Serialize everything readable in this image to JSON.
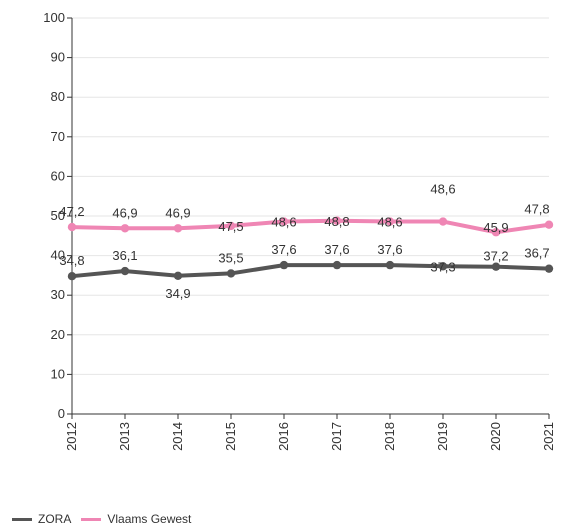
{
  "chart_data": {
    "type": "line",
    "title": "",
    "xlabel": "",
    "ylabel": "",
    "x": [
      "2012",
      "2013",
      "2014",
      "2015",
      "2016",
      "2017",
      "2018",
      "2019",
      "2020",
      "2021"
    ],
    "ylim": [
      0,
      100
    ],
    "yticks": [
      0,
      10,
      20,
      30,
      40,
      50,
      60,
      70,
      80,
      90,
      100
    ],
    "grid": true,
    "legend_position": "bottom-left",
    "series": [
      {
        "name": "ZORA",
        "color": "#555555",
        "values": [
          34.8,
          36.1,
          34.9,
          35.5,
          37.6,
          37.6,
          37.6,
          37.3,
          37.2,
          36.7
        ],
        "labels": [
          "34,8",
          "36,1",
          "34,9",
          "35,5",
          "37,6",
          "37,6",
          "37,6",
          "37,3",
          "37,2",
          "36,7"
        ]
      },
      {
        "name": "Vlaams Gewest",
        "color": "#ef86b4",
        "values": [
          47.2,
          46.9,
          46.9,
          47.5,
          48.6,
          48.8,
          48.6,
          48.6,
          45.9,
          47.8
        ],
        "labels": [
          "47,2",
          "46,9",
          "46,9",
          "47,5",
          "48,6",
          "48,8",
          "48,6",
          "48,6",
          "45,9",
          "47,8"
        ]
      }
    ]
  }
}
